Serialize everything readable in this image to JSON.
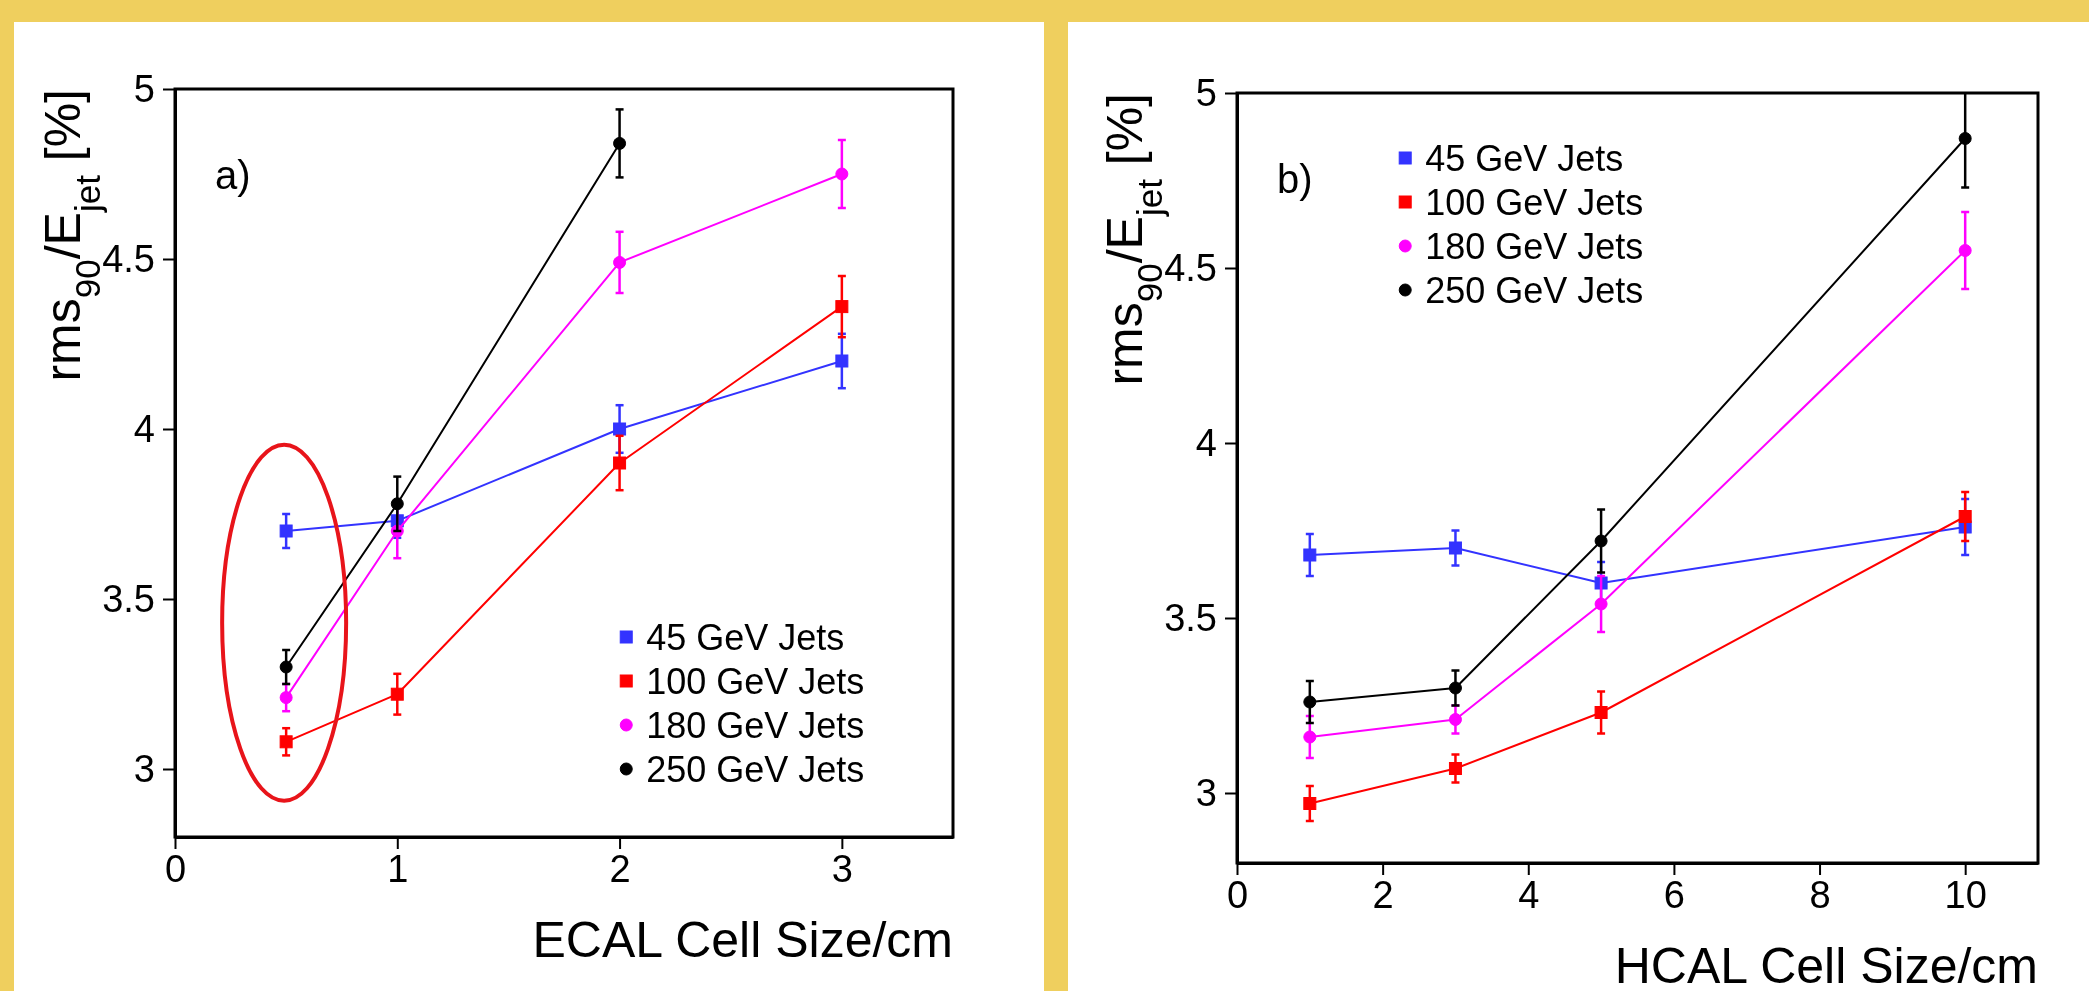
{
  "chart_data": [
    {
      "type": "line",
      "xlabel": "ECAL Cell Size/cm",
      "ylabel": "rms$_{90}$/E$_{jet}$ [%]",
      "annotations": [
        "a)"
      ],
      "legend": "bottom right",
      "line_style": "solid",
      "x": [
        0.5,
        1,
        2,
        3
      ],
      "xlim": [
        0,
        3.5
      ],
      "xticks": [
        0,
        1,
        2,
        3
      ],
      "ylim": [
        2.8,
        5
      ],
      "yticks": [
        3,
        3.5,
        4,
        4.5,
        5
      ],
      "series": [
        {
          "name": "45 GeV Jets",
          "color": "#3333ff",
          "marker": "square",
          "values": [
            3.7,
            3.73,
            4.0,
            4.2
          ],
          "errors": [
            0.05,
            0.05,
            0.07,
            0.08
          ]
        },
        {
          "name": "100 GeV Jets",
          "color": "#ff0000",
          "marker": "square",
          "values": [
            3.08,
            3.22,
            3.9,
            4.36
          ],
          "errors": [
            0.04,
            0.06,
            0.08,
            0.09
          ]
        },
        {
          "name": "180 GeV Jets",
          "color": "#ff00ff",
          "marker": "circle",
          "values": [
            3.21,
            3.7,
            4.49,
            4.75
          ],
          "errors": [
            0.04,
            0.08,
            0.09,
            0.1
          ]
        },
        {
          "name": "250 GeV Jets",
          "color": "#000000",
          "marker": "circle",
          "values": [
            3.3,
            3.78,
            4.84,
            null
          ],
          "errors": [
            0.05,
            0.08,
            0.1,
            null
          ]
        }
      ]
    },
    {
      "type": "line",
      "xlabel": "HCAL Cell Size/cm",
      "ylabel": "rms$_{90}$/E$_{jet}$ [%]",
      "annotations": [
        "b)"
      ],
      "legend": "top left",
      "line_style": "solid",
      "x": [
        1,
        3,
        5,
        10
      ],
      "xlim": [
        0,
        11
      ],
      "xticks": [
        0,
        2,
        4,
        6,
        8,
        10
      ],
      "ylim": [
        2.8,
        5
      ],
      "yticks": [
        3,
        3.5,
        4,
        4.5,
        5
      ],
      "series": [
        {
          "name": "45 GeV Jets",
          "color": "#3333ff",
          "marker": "square",
          "values": [
            3.68,
            3.7,
            3.6,
            3.76
          ],
          "errors": [
            0.06,
            0.05,
            0.06,
            0.08
          ]
        },
        {
          "name": "100 GeV Jets",
          "color": "#ff0000",
          "marker": "square",
          "values": [
            2.97,
            3.07,
            3.23,
            3.79
          ],
          "errors": [
            0.05,
            0.04,
            0.06,
            0.07
          ]
        },
        {
          "name": "180 GeV Jets",
          "color": "#ff00ff",
          "marker": "circle",
          "values": [
            3.16,
            3.21,
            3.54,
            4.55
          ],
          "errors": [
            0.06,
            0.04,
            0.08,
            0.11
          ]
        },
        {
          "name": "250 GeV Jets",
          "color": "#000000",
          "marker": "circle",
          "values": [
            3.26,
            3.3,
            3.72,
            4.87
          ],
          "errors": [
            0.06,
            0.05,
            0.09,
            0.14
          ]
        }
      ]
    }
  ]
}
